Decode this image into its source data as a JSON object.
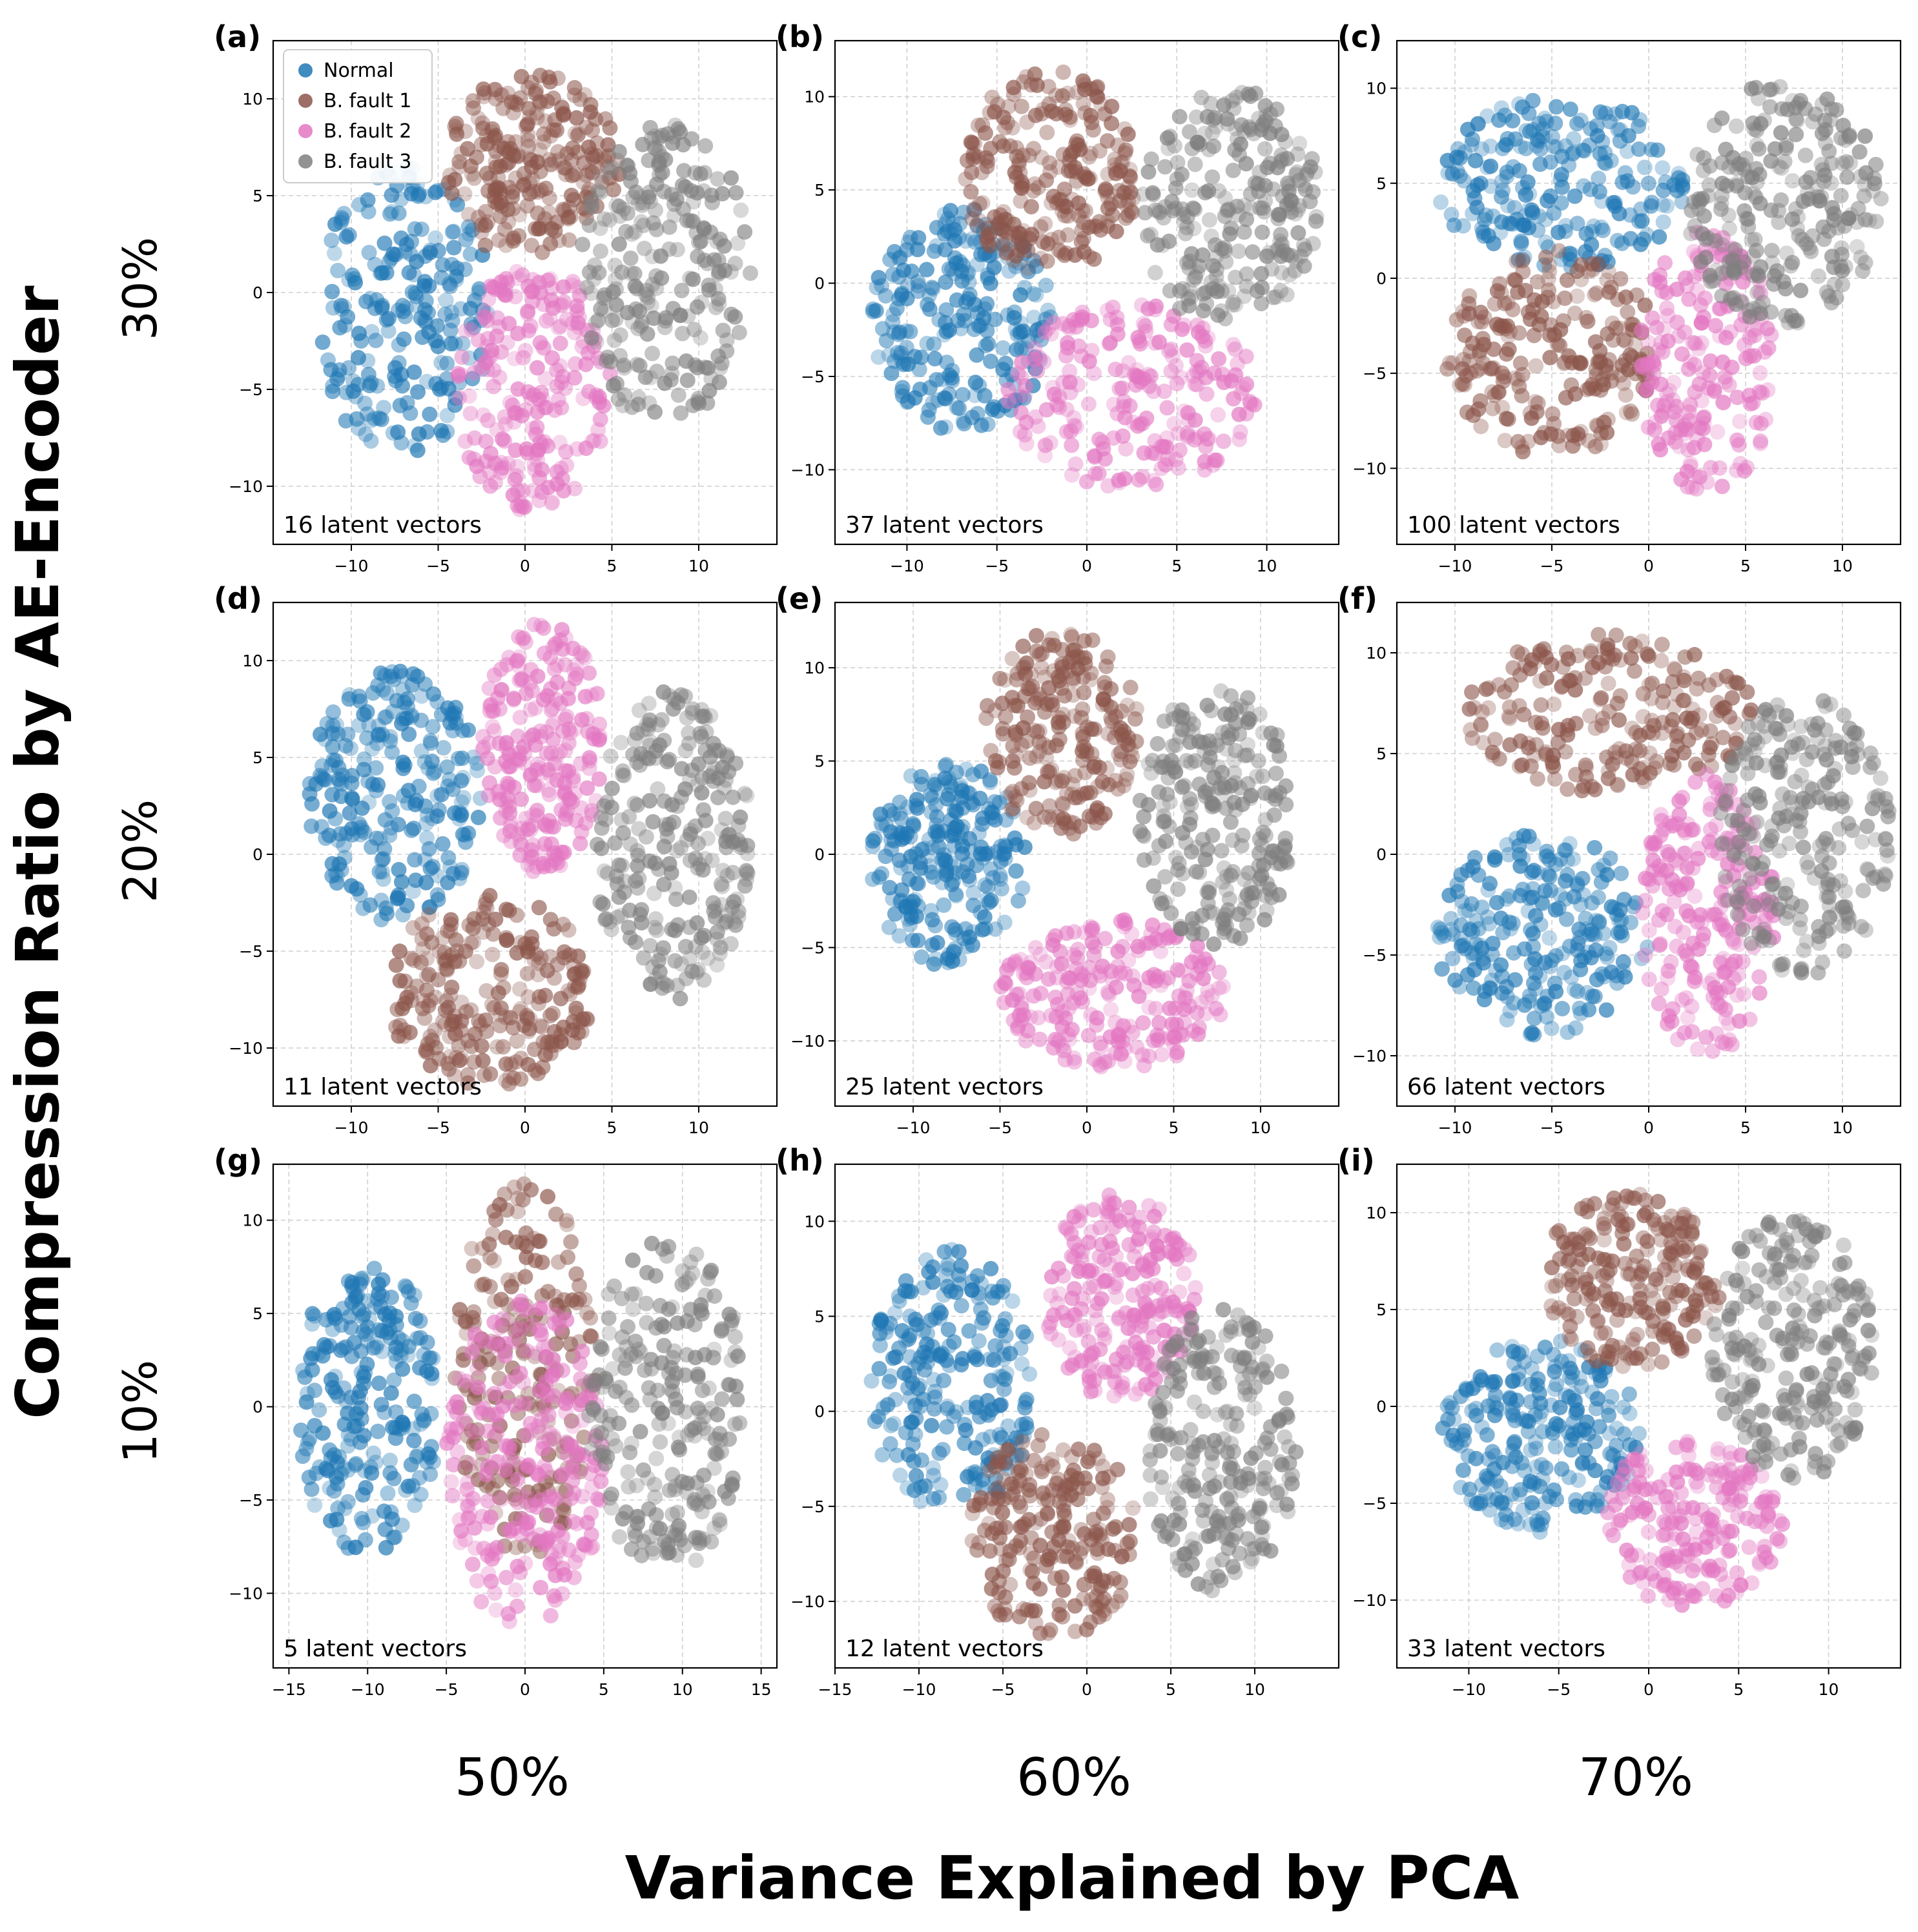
{
  "figure": {
    "y_title": "Compression Ratio by AE-Encoder",
    "x_title": "Variance Explained by PCA",
    "row_labels": [
      "30%",
      "20%",
      "10%"
    ],
    "col_labels": [
      "50%",
      "60%",
      "70%"
    ]
  },
  "legend": {
    "entries": [
      {
        "name": "Normal",
        "color": "#1f77b4"
      },
      {
        "name": "B. fault 1",
        "color": "#8c564b"
      },
      {
        "name": "B. fault 2",
        "color": "#e377c2"
      },
      {
        "name": "B. fault 3",
        "color": "#7f7f7f"
      }
    ]
  },
  "chart_data": [
    {
      "type": "scatter",
      "panel": "(a)",
      "annotation": "16 latent vectors",
      "xlim": [
        -14.5,
        14.5
      ],
      "ylim": [
        -13,
        13
      ],
      "xticks": [
        -10,
        -5,
        0,
        5,
        10
      ],
      "yticks": [
        -10,
        -5,
        0,
        5,
        10
      ],
      "grid": true,
      "legend": "top-left",
      "clusters": [
        {
          "class": "Normal",
          "cx": -7,
          "cy": -1,
          "rx": 5,
          "ry": 7.5,
          "n": 220
        },
        {
          "class": "B. fault 1",
          "cx": 0.5,
          "cy": 6.5,
          "rx": 5,
          "ry": 5,
          "n": 230
        },
        {
          "class": "B. fault 2",
          "cx": 0.5,
          "cy": -5,
          "rx": 4.5,
          "ry": 6.5,
          "n": 220
        },
        {
          "class": "B. fault 3",
          "cx": 8,
          "cy": 1,
          "rx": 5,
          "ry": 8,
          "n": 240
        }
      ]
    },
    {
      "type": "scatter",
      "panel": "(b)",
      "annotation": "37 latent vectors",
      "xlim": [
        -14,
        14
      ],
      "ylim": [
        -14,
        13
      ],
      "xticks": [
        -10,
        -5,
        0,
        5,
        10
      ],
      "yticks": [
        -10,
        -5,
        0,
        5,
        10
      ],
      "grid": true,
      "clusters": [
        {
          "class": "Normal",
          "cx": -7,
          "cy": -2,
          "rx": 5,
          "ry": 6,
          "n": 240
        },
        {
          "class": "B. fault 1",
          "cx": -2,
          "cy": 6,
          "rx": 5,
          "ry": 5.5,
          "n": 240
        },
        {
          "class": "B. fault 2",
          "cx": 2.5,
          "cy": -6,
          "rx": 7,
          "ry": 5,
          "n": 220
        },
        {
          "class": "B. fault 3",
          "cx": 8,
          "cy": 4,
          "rx": 5,
          "ry": 6.5,
          "n": 240
        }
      ]
    },
    {
      "type": "scatter",
      "panel": "(c)",
      "annotation": "100 latent vectors",
      "xlim": [
        -13,
        13
      ],
      "ylim": [
        -14,
        12.5
      ],
      "xticks": [
        -10,
        -5,
        0,
        5,
        10
      ],
      "yticks": [
        -10,
        -5,
        0,
        5,
        10
      ],
      "grid": true,
      "clusters": [
        {
          "class": "Normal",
          "cx": -4.5,
          "cy": 5,
          "rx": 6.5,
          "ry": 4.5,
          "n": 220
        },
        {
          "class": "B. fault 1",
          "cx": -5,
          "cy": -4,
          "rx": 5.5,
          "ry": 5.5,
          "n": 230
        },
        {
          "class": "B. fault 2",
          "cx": 3,
          "cy": -4.5,
          "rx": 3.5,
          "ry": 7,
          "n": 200
        },
        {
          "class": "B. fault 3",
          "cx": 7,
          "cy": 4,
          "rx": 5,
          "ry": 6.5,
          "n": 240
        }
      ]
    },
    {
      "type": "scatter",
      "panel": "(d)",
      "annotation": "11 latent vectors",
      "xlim": [
        -14.5,
        14.5
      ],
      "ylim": [
        -13,
        13
      ],
      "xticks": [
        -10,
        -5,
        0,
        5,
        10
      ],
      "yticks": [
        -10,
        -5,
        0,
        5,
        10
      ],
      "grid": true,
      "clusters": [
        {
          "class": "Normal",
          "cx": -7.5,
          "cy": 3,
          "rx": 5,
          "ry": 6.5,
          "n": 240
        },
        {
          "class": "B. fault 1",
          "cx": -2,
          "cy": -7,
          "rx": 6,
          "ry": 5,
          "n": 240
        },
        {
          "class": "B. fault 2",
          "cx": 1,
          "cy": 5.5,
          "rx": 3.5,
          "ry": 6.5,
          "n": 230
        },
        {
          "class": "B. fault 3",
          "cx": 8.5,
          "cy": 0.5,
          "rx": 4.5,
          "ry": 8,
          "n": 250
        }
      ]
    },
    {
      "type": "scatter",
      "panel": "(e)",
      "annotation": "25 latent vectors",
      "xlim": [
        -14.5,
        14.5
      ],
      "ylim": [
        -13.5,
        13.5
      ],
      "xticks": [
        -10,
        -5,
        0,
        5,
        10
      ],
      "yticks": [
        -10,
        -5,
        0,
        5,
        10
      ],
      "grid": true,
      "clusters": [
        {
          "class": "Normal",
          "cx": -8,
          "cy": -0.5,
          "rx": 4.5,
          "ry": 5.5,
          "n": 230
        },
        {
          "class": "B. fault 1",
          "cx": -1.5,
          "cy": 6.5,
          "rx": 4.5,
          "ry": 5.5,
          "n": 220
        },
        {
          "class": "B. fault 2",
          "cx": 1.5,
          "cy": -7.5,
          "rx": 6.5,
          "ry": 4,
          "n": 220
        },
        {
          "class": "B. fault 3",
          "cx": 7.5,
          "cy": 2,
          "rx": 4.5,
          "ry": 7,
          "n": 240
        }
      ]
    },
    {
      "type": "scatter",
      "panel": "(f)",
      "annotation": "66 latent vectors",
      "xlim": [
        -13,
        13
      ],
      "ylim": [
        -12.5,
        12.5
      ],
      "xticks": [
        -10,
        -5,
        0,
        5,
        10
      ],
      "yticks": [
        -10,
        -5,
        0,
        5,
        10
      ],
      "grid": true,
      "clusters": [
        {
          "class": "Normal",
          "cx": -5.5,
          "cy": -4,
          "rx": 5.5,
          "ry": 5,
          "n": 230
        },
        {
          "class": "B. fault 1",
          "cx": -2,
          "cy": 7,
          "rx": 7.5,
          "ry": 4,
          "n": 220
        },
        {
          "class": "B. fault 2",
          "cx": 3,
          "cy": -3,
          "rx": 3.5,
          "ry": 7,
          "n": 210
        },
        {
          "class": "B. fault 3",
          "cx": 8,
          "cy": 1,
          "rx": 4.5,
          "ry": 7,
          "n": 240
        }
      ]
    },
    {
      "type": "scatter",
      "panel": "(g)",
      "annotation": "5 latent vectors",
      "xlim": [
        -16,
        16
      ],
      "ylim": [
        -14,
        13
      ],
      "xticks": [
        -15,
        -10,
        -5,
        0,
        5,
        10,
        15
      ],
      "yticks": [
        -10,
        -5,
        0,
        5,
        10
      ],
      "grid": true,
      "clusters": [
        {
          "class": "Normal",
          "cx": -10,
          "cy": 0,
          "rx": 4.5,
          "ry": 8,
          "n": 230
        },
        {
          "class": "B. fault 1",
          "cx": 0,
          "cy": 2,
          "rx": 4.5,
          "ry": 10,
          "n": 230
        },
        {
          "class": "B. fault 2",
          "cx": 0,
          "cy": -3,
          "rx": 5,
          "ry": 9,
          "n": 240
        },
        {
          "class": "B. fault 3",
          "cx": 9,
          "cy": 0,
          "rx": 5,
          "ry": 9,
          "n": 240
        }
      ]
    },
    {
      "type": "scatter",
      "panel": "(h)",
      "annotation": "12 latent vectors",
      "xlim": [
        -15,
        15
      ],
      "ylim": [
        -13.5,
        13
      ],
      "xticks": [
        -15,
        -10,
        -5,
        0,
        5,
        10
      ],
      "yticks": [
        -10,
        -5,
        0,
        5,
        10
      ],
      "grid": true,
      "clusters": [
        {
          "class": "Normal",
          "cx": -8,
          "cy": 1.5,
          "rx": 5,
          "ry": 7,
          "n": 230
        },
        {
          "class": "B. fault 1",
          "cx": -2,
          "cy": -6.5,
          "rx": 5,
          "ry": 5.5,
          "n": 220
        },
        {
          "class": "B. fault 2",
          "cx": 2,
          "cy": 6,
          "rx": 4.5,
          "ry": 5.5,
          "n": 220
        },
        {
          "class": "B. fault 3",
          "cx": 8,
          "cy": -2,
          "rx": 4.5,
          "ry": 7.5,
          "n": 240
        }
      ]
    },
    {
      "type": "scatter",
      "panel": "(i)",
      "annotation": "33 latent vectors",
      "xlim": [
        -14,
        14
      ],
      "ylim": [
        -13.5,
        12.5
      ],
      "xticks": [
        -10,
        -5,
        0,
        5,
        10
      ],
      "yticks": [
        -10,
        -5,
        0,
        5,
        10
      ],
      "grid": true,
      "clusters": [
        {
          "class": "Normal",
          "cx": -6,
          "cy": -1.5,
          "rx": 5.5,
          "ry": 5,
          "n": 230
        },
        {
          "class": "B. fault 1",
          "cx": -1,
          "cy": 6.5,
          "rx": 5,
          "ry": 4.5,
          "n": 220
        },
        {
          "class": "B. fault 2",
          "cx": 2.5,
          "cy": -6,
          "rx": 5,
          "ry": 4.5,
          "n": 200
        },
        {
          "class": "B. fault 3",
          "cx": 8,
          "cy": 3,
          "rx": 4.5,
          "ry": 7,
          "n": 240
        }
      ]
    }
  ]
}
